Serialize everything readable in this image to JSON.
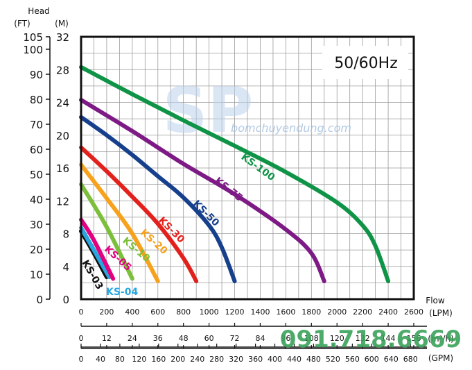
{
  "chart_data": {
    "type": "line",
    "title": "",
    "frequency_label": "50/60Hz",
    "watermark": {
      "logo_text": "SP",
      "site_text": "bomchuyendung.com",
      "phone_text": "091.718.6669"
    },
    "y_axis": {
      "header": "Head",
      "left_unit": "(FT)",
      "right_unit": "(M)",
      "ft_ticks": [
        "0",
        "10",
        "20",
        "30",
        "40",
        "50",
        "60",
        "70",
        "80",
        "90",
        "100",
        "105"
      ],
      "m_ticks": [
        "0",
        "4",
        "8",
        "12",
        "16",
        "20",
        "24",
        "28",
        "32"
      ],
      "ylim_m": [
        0,
        32
      ]
    },
    "x_axis": {
      "header": "Flow",
      "lpm_unit": "(LPM)",
      "m3h_unit": "(m³/h)",
      "gpm_unit": "(GPM)",
      "lpm_ticks": [
        "0",
        "200",
        "400",
        "600",
        "800",
        "1000",
        "1200",
        "1400",
        "1600",
        "1800",
        "2000",
        "2200",
        "2400",
        "2600"
      ],
      "m3h_ticks": [
        "0",
        "12",
        "24",
        "36",
        "48",
        "60",
        "72",
        "84",
        "96",
        "108",
        "120",
        "132",
        "144",
        "156"
      ],
      "gpm_ticks": [
        "0",
        "40",
        "80",
        "120",
        "160",
        "200",
        "240",
        "280",
        "320",
        "360",
        "400",
        "440",
        "480",
        "520",
        "560",
        "600",
        "640",
        "680"
      ],
      "xlim_lpm": [
        0,
        2600
      ]
    },
    "grid": true,
    "series": [
      {
        "name": "KS-03",
        "color": "#111111",
        "points": [
          [
            0,
            8.3
          ],
          [
            100,
            5.6
          ],
          [
            200,
            2.7
          ]
        ]
      },
      {
        "name": "KS-04",
        "color": "#29a6e0",
        "points": [
          [
            0,
            8.7
          ],
          [
            100,
            6.0
          ],
          [
            220,
            2.7
          ]
        ]
      },
      {
        "name": "KS-05",
        "color": "#e3007f",
        "points": [
          [
            0,
            9.7
          ],
          [
            100,
            7.2
          ],
          [
            250,
            2.5
          ]
        ]
      },
      {
        "name": "KS-10",
        "color": "#7bbf3a",
        "points": [
          [
            0,
            14.0
          ],
          [
            200,
            8.8
          ],
          [
            400,
            2.5
          ]
        ]
      },
      {
        "name": "KS-20",
        "color": "#f7a21c",
        "points": [
          [
            0,
            16.4
          ],
          [
            200,
            12.3
          ],
          [
            400,
            8.0
          ],
          [
            600,
            2.2
          ]
        ]
      },
      {
        "name": "KS-30",
        "color": "#e3211c",
        "points": [
          [
            0,
            18.5
          ],
          [
            200,
            15.6
          ],
          [
            400,
            12.5
          ],
          [
            600,
            9.2
          ],
          [
            800,
            5.0
          ],
          [
            900,
            2.2
          ]
        ]
      },
      {
        "name": "KS-50",
        "color": "#163f8c",
        "points": [
          [
            0,
            22.2
          ],
          [
            200,
            20.0
          ],
          [
            400,
            17.6
          ],
          [
            600,
            15.0
          ],
          [
            800,
            12.4
          ],
          [
            1000,
            9.0
          ],
          [
            1100,
            6.3
          ],
          [
            1200,
            2.2
          ]
        ]
      },
      {
        "name": "KS-75",
        "color": "#7d1a85",
        "points": [
          [
            0,
            24.3
          ],
          [
            400,
            20.5
          ],
          [
            800,
            16.5
          ],
          [
            1200,
            12.8
          ],
          [
            1600,
            8.5
          ],
          [
            1800,
            5.6
          ],
          [
            1900,
            2.2
          ]
        ]
      },
      {
        "name": "KS-100",
        "color": "#0f9447",
        "points": [
          [
            0,
            28.3
          ],
          [
            400,
            25.0
          ],
          [
            800,
            21.8
          ],
          [
            1200,
            18.7
          ],
          [
            1600,
            15.5
          ],
          [
            2000,
            11.8
          ],
          [
            2200,
            9.0
          ],
          [
            2300,
            6.5
          ],
          [
            2400,
            2.2
          ]
        ]
      }
    ]
  }
}
